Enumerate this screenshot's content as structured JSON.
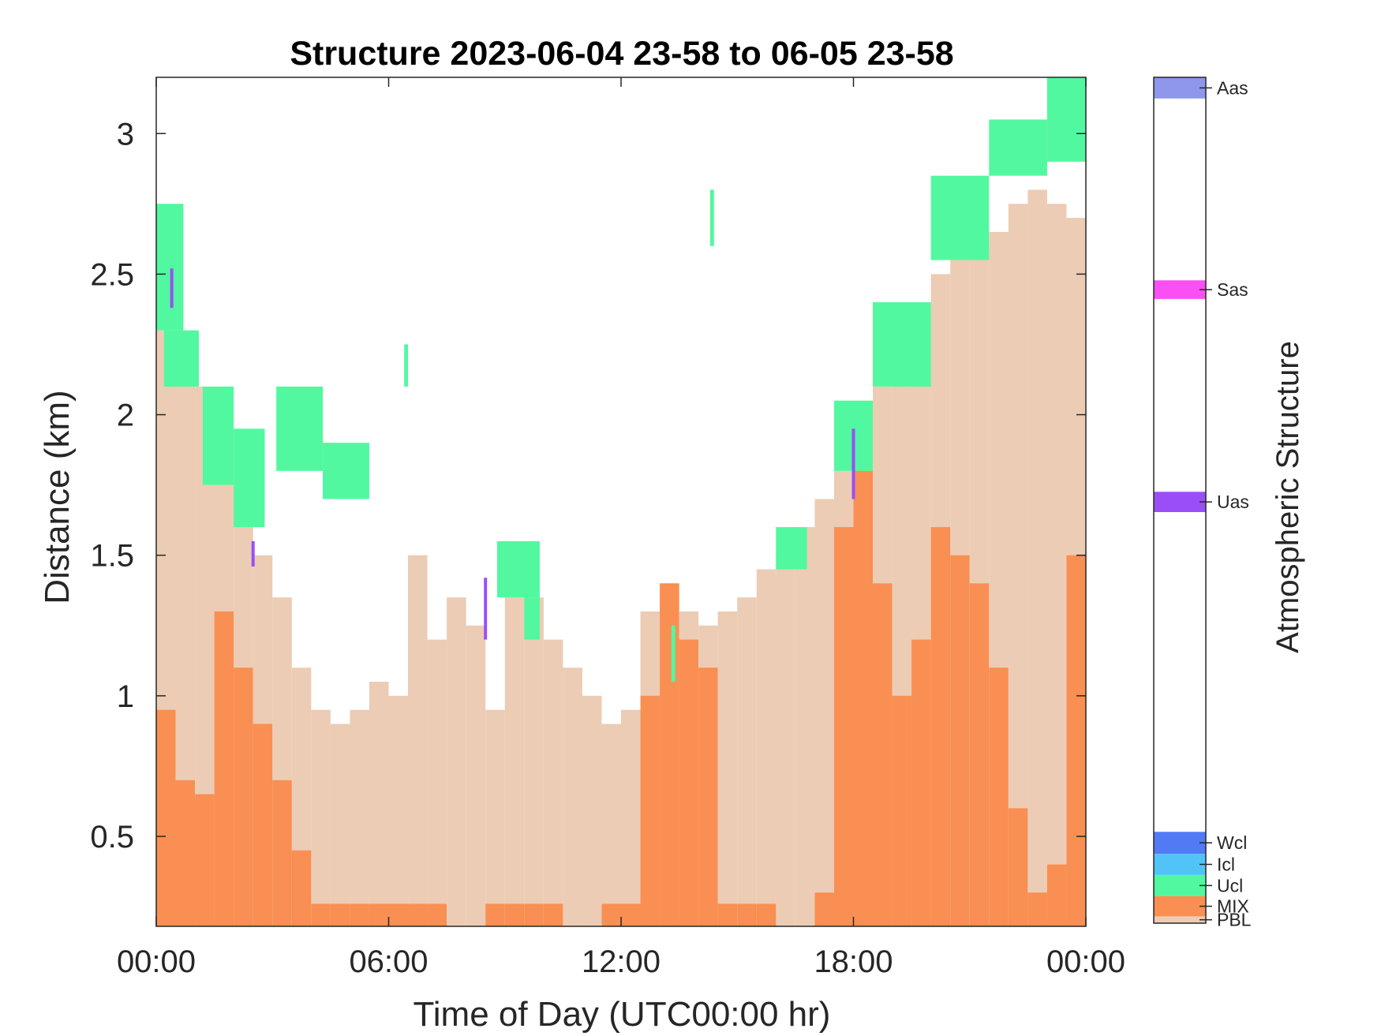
{
  "chart_data": {
    "type": "area",
    "title": "Structure 2023-06-04 23-58 to 06-05 23-58",
    "xlabel": "Time of Day (UTC00:00 hr)",
    "ylabel": "Distance (km)",
    "colorbar_label": "Atmospheric Structure",
    "xlim": [
      0,
      24
    ],
    "ylim": [
      0.18,
      3.2
    ],
    "x_ticks": [
      0,
      6,
      12,
      18,
      24
    ],
    "x_tick_labels": [
      "00:00",
      "06:00",
      "12:00",
      "18:00",
      "00:00"
    ],
    "y_ticks": [
      0.5,
      1,
      1.5,
      2,
      2.5,
      3
    ],
    "y_tick_labels": [
      "0.5",
      "1",
      "1.5",
      "2",
      "2.5",
      "3"
    ],
    "colors": {
      "PBL": "#ecccb4",
      "MIX": "#f98f52",
      "Ucl": "#52f89f",
      "Icl": "#52c3f7",
      "Wcl": "#527af5",
      "Uas": "#9a4ef7",
      "Sas": "#f94ff3",
      "Aas": "#8e97ec"
    },
    "colorbar_categories": [
      "Aas",
      "Sas",
      "Uas",
      "Wcl",
      "Icl",
      "Ucl",
      "MIX",
      "PBL"
    ],
    "pbl_top_km": {
      "hours": [
        0.0,
        0.5,
        1.0,
        1.5,
        2.0,
        2.5,
        3.0,
        3.5,
        4.0,
        4.5,
        5.0,
        5.5,
        6.0,
        6.5,
        7.0,
        7.5,
        8.0,
        8.5,
        9.0,
        9.5,
        10.0,
        10.5,
        11.0,
        11.5,
        12.0,
        12.5,
        13.0,
        13.5,
        14.0,
        14.5,
        15.0,
        15.5,
        16.0,
        16.5,
        17.0,
        17.5,
        18.0,
        18.5,
        19.0,
        19.5,
        20.0,
        20.5,
        21.0,
        21.5,
        22.0,
        22.5,
        23.0,
        23.5,
        24.0
      ],
      "values": [
        2.3,
        2.15,
        2.1,
        1.9,
        1.75,
        1.5,
        1.35,
        1.1,
        0.95,
        0.9,
        0.95,
        1.05,
        1.0,
        1.5,
        1.2,
        1.35,
        1.25,
        0.95,
        1.35,
        1.35,
        1.2,
        1.1,
        1.0,
        0.9,
        0.95,
        1.3,
        1.4,
        1.3,
        1.25,
        1.3,
        1.35,
        1.45,
        1.5,
        1.6,
        1.7,
        1.8,
        1.95,
        2.1,
        2.25,
        2.35,
        2.5,
        2.55,
        2.6,
        2.65,
        2.75,
        2.8,
        2.75,
        2.7,
        2.65
      ]
    },
    "mix_top_km": {
      "hours": [
        0.0,
        0.5,
        1.0,
        1.5,
        2.0,
        2.5,
        3.0,
        3.5,
        4.0,
        4.5,
        5.0,
        5.5,
        6.0,
        6.5,
        7.0,
        7.5,
        8.0,
        8.5,
        9.0,
        9.5,
        10.0,
        10.5,
        11.0,
        11.5,
        12.0,
        12.5,
        13.0,
        13.5,
        14.0,
        14.5,
        15.0,
        15.5,
        16.0,
        16.5,
        17.0,
        17.5,
        18.0,
        18.5,
        19.0,
        19.5,
        20.0,
        20.5,
        21.0,
        21.5,
        22.0,
        22.5,
        23.0,
        23.5,
        24.0
      ],
      "values": [
        0.95,
        0.7,
        0.65,
        1.3,
        1.1,
        0.9,
        0.7,
        0.45,
        0.26,
        0.26,
        0.26,
        0.26,
        0.26,
        0.26,
        0.26,
        0.18,
        0.18,
        0.26,
        0.26,
        0.26,
        0.26,
        0.18,
        0.18,
        0.26,
        0.26,
        1.0,
        1.4,
        1.2,
        1.1,
        0.26,
        0.26,
        0.26,
        0.18,
        0.18,
        0.3,
        1.6,
        1.9,
        1.4,
        1.0,
        1.2,
        1.6,
        1.5,
        1.4,
        1.1,
        0.6,
        0.3,
        0.4,
        1.5,
        2.0
      ]
    },
    "ucl_segments_km": [
      {
        "x0": 0.0,
        "x1": 0.7,
        "y0": 2.3,
        "y1": 2.75
      },
      {
        "x0": 0.2,
        "x1": 1.1,
        "y0": 2.1,
        "y1": 2.3
      },
      {
        "x0": 1.2,
        "x1": 2.0,
        "y0": 1.75,
        "y1": 2.1
      },
      {
        "x0": 2.0,
        "x1": 2.8,
        "y0": 1.6,
        "y1": 1.95
      },
      {
        "x0": 3.1,
        "x1": 4.3,
        "y0": 1.8,
        "y1": 2.1
      },
      {
        "x0": 4.3,
        "x1": 5.5,
        "y0": 1.7,
        "y1": 1.9
      },
      {
        "x0": 6.4,
        "x1": 6.5,
        "y0": 2.1,
        "y1": 2.25
      },
      {
        "x0": 8.8,
        "x1": 9.9,
        "y0": 1.35,
        "y1": 1.55
      },
      {
        "x0": 9.5,
        "x1": 9.9,
        "y0": 1.2,
        "y1": 1.35
      },
      {
        "x0": 13.3,
        "x1": 13.4,
        "y0": 1.05,
        "y1": 1.25
      },
      {
        "x0": 14.3,
        "x1": 14.4,
        "y0": 2.6,
        "y1": 2.8
      },
      {
        "x0": 16.0,
        "x1": 16.8,
        "y0": 1.45,
        "y1": 1.6
      },
      {
        "x0": 17.5,
        "x1": 18.5,
        "y0": 1.8,
        "y1": 2.05
      },
      {
        "x0": 18.5,
        "x1": 20.0,
        "y0": 2.1,
        "y1": 2.4
      },
      {
        "x0": 20.0,
        "x1": 21.5,
        "y0": 2.55,
        "y1": 2.85
      },
      {
        "x0": 21.5,
        "x1": 23.0,
        "y0": 2.85,
        "y1": 3.05
      },
      {
        "x0": 23.0,
        "x1": 24.0,
        "y0": 2.9,
        "y1": 3.2
      }
    ],
    "uas_marks_km": [
      {
        "x": 0.4,
        "y0": 2.38,
        "y1": 2.52
      },
      {
        "x": 2.5,
        "y0": 1.46,
        "y1": 1.55
      },
      {
        "x": 8.5,
        "y0": 1.2,
        "y1": 1.42
      },
      {
        "x": 18.0,
        "y0": 1.7,
        "y1": 1.95
      }
    ]
  }
}
